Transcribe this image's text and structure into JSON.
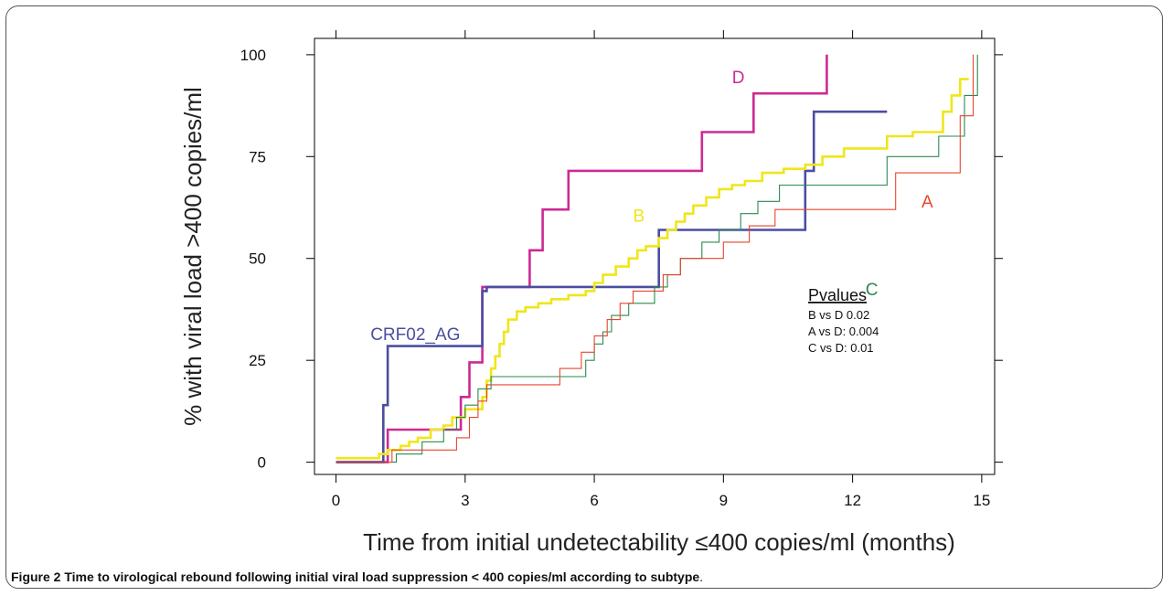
{
  "chart_data": {
    "type": "line",
    "step": true,
    "xlabel": "Time from initial undetectability ≤400 copies/ml (months)",
    "ylabel": "% with viral load >400 copies/ml",
    "xlim": [
      -0.5,
      15.3
    ],
    "ylim": [
      -3,
      104
    ],
    "xticks": [
      0,
      3,
      6,
      9,
      12,
      15
    ],
    "yticks": [
      0,
      25,
      50,
      75,
      100
    ],
    "grid": false,
    "series": [
      {
        "name": "D",
        "color": "#cc2a93",
        "stroke": 2.6,
        "label_at": [
          9.2,
          93
        ],
        "points": [
          [
            0,
            0
          ],
          [
            1.2,
            0
          ],
          [
            1.2,
            8
          ],
          [
            2.9,
            8
          ],
          [
            2.9,
            16
          ],
          [
            3.1,
            16
          ],
          [
            3.1,
            24.5
          ],
          [
            3.4,
            24.5
          ],
          [
            3.4,
            43
          ],
          [
            4.5,
            43
          ],
          [
            4.5,
            52
          ],
          [
            4.8,
            52
          ],
          [
            4.8,
            62
          ],
          [
            5.4,
            62
          ],
          [
            5.4,
            71.5
          ],
          [
            8.5,
            71.5
          ],
          [
            8.5,
            81
          ],
          [
            9.7,
            81
          ],
          [
            9.7,
            90.5
          ],
          [
            11.4,
            90.5
          ],
          [
            11.4,
            100
          ]
        ]
      },
      {
        "name": "CRF02_AG",
        "color": "#4b4ea0",
        "stroke": 2.6,
        "label_at": [
          0.8,
          30
        ],
        "points": [
          [
            0,
            0
          ],
          [
            1.1,
            0
          ],
          [
            1.1,
            14
          ],
          [
            1.2,
            14
          ],
          [
            1.2,
            28.5
          ],
          [
            3.4,
            28.5
          ],
          [
            3.4,
            42
          ],
          [
            3.5,
            42
          ],
          [
            3.5,
            43
          ],
          [
            7.5,
            43
          ],
          [
            7.5,
            57
          ],
          [
            10.9,
            57
          ],
          [
            10.9,
            71.5
          ],
          [
            11.1,
            71.5
          ],
          [
            11.1,
            86
          ],
          [
            12.8,
            86
          ]
        ]
      },
      {
        "name": "B",
        "color": "#f0e619",
        "stroke": 2.6,
        "label_at": [
          6.9,
          59
        ],
        "points": [
          [
            0,
            1
          ],
          [
            1.0,
            1
          ],
          [
            1.0,
            2
          ],
          [
            1.2,
            2
          ],
          [
            1.2,
            3
          ],
          [
            1.5,
            3
          ],
          [
            1.5,
            4
          ],
          [
            1.7,
            4
          ],
          [
            1.7,
            5
          ],
          [
            1.9,
            5
          ],
          [
            1.9,
            6
          ],
          [
            2.2,
            6
          ],
          [
            2.2,
            8
          ],
          [
            2.5,
            8
          ],
          [
            2.5,
            9
          ],
          [
            2.7,
            9
          ],
          [
            2.7,
            11
          ],
          [
            3.0,
            11
          ],
          [
            3.0,
            13
          ],
          [
            3.4,
            13
          ],
          [
            3.4,
            16
          ],
          [
            3.5,
            16
          ],
          [
            3.5,
            20
          ],
          [
            3.6,
            20
          ],
          [
            3.6,
            23
          ],
          [
            3.7,
            23
          ],
          [
            3.7,
            26
          ],
          [
            3.8,
            26
          ],
          [
            3.8,
            29
          ],
          [
            3.9,
            29
          ],
          [
            3.9,
            32
          ],
          [
            4.0,
            32
          ],
          [
            4.0,
            35
          ],
          [
            4.2,
            35
          ],
          [
            4.2,
            37
          ],
          [
            4.4,
            37
          ],
          [
            4.4,
            38
          ],
          [
            4.7,
            38
          ],
          [
            4.7,
            39
          ],
          [
            5.0,
            39
          ],
          [
            5.0,
            40
          ],
          [
            5.4,
            40
          ],
          [
            5.4,
            41
          ],
          [
            5.8,
            41
          ],
          [
            5.8,
            42
          ],
          [
            6.0,
            42
          ],
          [
            6.0,
            44
          ],
          [
            6.2,
            44
          ],
          [
            6.2,
            46
          ],
          [
            6.5,
            46
          ],
          [
            6.5,
            48
          ],
          [
            6.8,
            48
          ],
          [
            6.8,
            50
          ],
          [
            7.0,
            50
          ],
          [
            7.0,
            52
          ],
          [
            7.2,
            52
          ],
          [
            7.2,
            53
          ],
          [
            7.5,
            53
          ],
          [
            7.5,
            55
          ],
          [
            7.7,
            55
          ],
          [
            7.7,
            57
          ],
          [
            7.9,
            57
          ],
          [
            7.9,
            59
          ],
          [
            8.1,
            59
          ],
          [
            8.1,
            61
          ],
          [
            8.3,
            61
          ],
          [
            8.3,
            63
          ],
          [
            8.6,
            63
          ],
          [
            8.6,
            65
          ],
          [
            8.9,
            65
          ],
          [
            8.9,
            67
          ],
          [
            9.2,
            67
          ],
          [
            9.2,
            68
          ],
          [
            9.5,
            68
          ],
          [
            9.5,
            69
          ],
          [
            9.9,
            69
          ],
          [
            9.9,
            71
          ],
          [
            10.4,
            71
          ],
          [
            10.4,
            72
          ],
          [
            10.9,
            72
          ],
          [
            10.9,
            73
          ],
          [
            11.3,
            73
          ],
          [
            11.3,
            75
          ],
          [
            11.8,
            75
          ],
          [
            11.8,
            77
          ],
          [
            12.8,
            77
          ],
          [
            12.8,
            80
          ],
          [
            13.4,
            80
          ],
          [
            13.4,
            81
          ],
          [
            14.1,
            81
          ],
          [
            14.1,
            86
          ],
          [
            14.3,
            86
          ],
          [
            14.3,
            90
          ],
          [
            14.5,
            90
          ],
          [
            14.5,
            94
          ],
          [
            14.7,
            94
          ]
        ]
      },
      {
        "name": "C",
        "color": "#2a8a4e",
        "stroke": 1.1,
        "label_at": [
          12.3,
          41
        ],
        "points": [
          [
            0,
            0
          ],
          [
            1.4,
            0
          ],
          [
            1.4,
            2
          ],
          [
            2.0,
            2
          ],
          [
            2.0,
            5
          ],
          [
            2.5,
            5
          ],
          [
            2.5,
            8
          ],
          [
            2.8,
            8
          ],
          [
            2.8,
            11
          ],
          [
            3.0,
            11
          ],
          [
            3.0,
            14
          ],
          [
            3.3,
            14
          ],
          [
            3.3,
            18
          ],
          [
            3.6,
            18
          ],
          [
            3.6,
            21
          ],
          [
            5.8,
            21
          ],
          [
            5.8,
            25
          ],
          [
            6.0,
            25
          ],
          [
            6.0,
            29
          ],
          [
            6.2,
            29
          ],
          [
            6.2,
            32
          ],
          [
            6.4,
            32
          ],
          [
            6.4,
            36
          ],
          [
            6.8,
            36
          ],
          [
            6.8,
            39
          ],
          [
            7.4,
            39
          ],
          [
            7.4,
            43
          ],
          [
            7.7,
            43
          ],
          [
            7.7,
            46
          ],
          [
            8.0,
            46
          ],
          [
            8.0,
            50
          ],
          [
            8.5,
            50
          ],
          [
            8.5,
            54
          ],
          [
            8.9,
            54
          ],
          [
            8.9,
            57
          ],
          [
            9.4,
            57
          ],
          [
            9.4,
            61
          ],
          [
            9.8,
            61
          ],
          [
            9.8,
            64
          ],
          [
            10.3,
            64
          ],
          [
            10.3,
            68
          ],
          [
            12.8,
            68
          ],
          [
            12.8,
            75
          ],
          [
            14.0,
            75
          ],
          [
            14.0,
            80
          ],
          [
            14.6,
            80
          ],
          [
            14.6,
            90
          ],
          [
            14.9,
            90
          ],
          [
            14.9,
            100
          ]
        ]
      },
      {
        "name": "A",
        "color": "#e8452c",
        "stroke": 1.1,
        "label_at": [
          13.6,
          62.5
        ],
        "points": [
          [
            0,
            0
          ],
          [
            1.3,
            0
          ],
          [
            1.3,
            3
          ],
          [
            2.8,
            3
          ],
          [
            2.8,
            6
          ],
          [
            3.1,
            6
          ],
          [
            3.1,
            11
          ],
          [
            3.3,
            11
          ],
          [
            3.3,
            15
          ],
          [
            3.5,
            15
          ],
          [
            3.5,
            19
          ],
          [
            5.2,
            19
          ],
          [
            5.2,
            23
          ],
          [
            5.7,
            23
          ],
          [
            5.7,
            27
          ],
          [
            6.0,
            27
          ],
          [
            6.0,
            31
          ],
          [
            6.3,
            31
          ],
          [
            6.3,
            35
          ],
          [
            6.6,
            35
          ],
          [
            6.6,
            39
          ],
          [
            6.9,
            39
          ],
          [
            6.9,
            42
          ],
          [
            7.6,
            42
          ],
          [
            7.6,
            46
          ],
          [
            8.0,
            46
          ],
          [
            8.0,
            50
          ],
          [
            9.0,
            50
          ],
          [
            9.0,
            54
          ],
          [
            9.6,
            54
          ],
          [
            9.6,
            58
          ],
          [
            10.2,
            58
          ],
          [
            10.2,
            62
          ],
          [
            13.0,
            62
          ],
          [
            13.0,
            71
          ],
          [
            14.5,
            71
          ],
          [
            14.5,
            85
          ],
          [
            14.8,
            85
          ],
          [
            14.8,
            100
          ]
        ]
      }
    ],
    "annotation": {
      "title": "Pvalues",
      "lines": [
        "B vs D  0.02",
        "A vs D: 0.004",
        "C vs D: 0.01"
      ]
    }
  },
  "caption": {
    "bold": "Figure 2 Time to virological rebound following initial viral load suppression < 400 copies/ml according to subtype",
    "tail": "."
  }
}
